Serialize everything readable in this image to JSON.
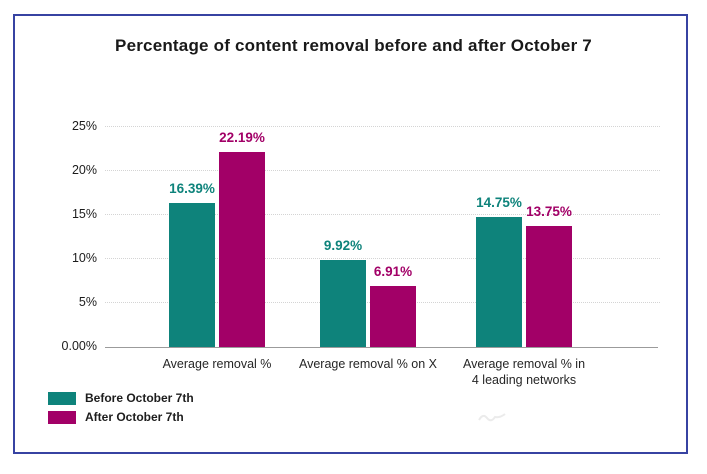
{
  "frame": {
    "border_color": "#3743a2"
  },
  "chart_data": {
    "type": "bar",
    "title": "Percentage of content removal before and after October 7",
    "categories": [
      "Average removal %",
      "Average removal % on X",
      "Average removal %  in\n4 leading networks"
    ],
    "series": [
      {
        "name": "Before October 7th",
        "color": "#0e837b",
        "values": [
          16.39,
          9.92,
          14.75
        ],
        "labels": [
          "16.39%",
          "9.92%",
          "14.75%"
        ]
      },
      {
        "name": "After October 7th",
        "color": "#a20067",
        "values": [
          22.19,
          6.91,
          13.75
        ],
        "labels": [
          "22.19%",
          "6.91%",
          "13.75%"
        ]
      }
    ],
    "xlabel": "",
    "ylabel": "",
    "ylim": [
      0,
      25
    ],
    "yticks": [
      {
        "value": 0,
        "label": "0.00%"
      },
      {
        "value": 5,
        "label": "5%"
      },
      {
        "value": 10,
        "label": "10%"
      },
      {
        "value": 15,
        "label": "15%"
      },
      {
        "value": 20,
        "label": "20%"
      },
      {
        "value": 25,
        "label": "25%"
      }
    ],
    "grid": "horizontal-dotted",
    "legend_position": "bottom-left"
  },
  "watermark": {
    "icon": "faint-squiggle-watermark"
  }
}
